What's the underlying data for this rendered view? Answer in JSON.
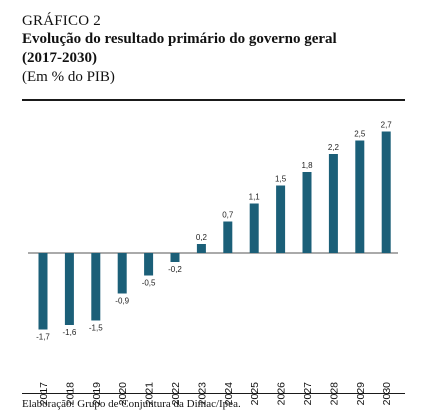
{
  "figure": {
    "label": "GRÁFICO 2",
    "title_line1": "Evolução do resultado primário do governo geral",
    "title_line2": "(2017-2030)",
    "subtitle": "(Em % do PIB)",
    "source": "Elaboração: Grupo de Conjuntura da Dimac/Ipea."
  },
  "colors": {
    "bar": "#1b5f78",
    "baseline": "#555555",
    "rule": "#1a1a1a"
  },
  "chart_data": {
    "type": "bar",
    "categories": [
      "2017",
      "2018",
      "2019",
      "2020",
      "2021",
      "2022",
      "2023",
      "2024",
      "2025",
      "2026",
      "2027",
      "2028",
      "2029",
      "2030"
    ],
    "values": [
      -1.7,
      -1.6,
      -1.5,
      -0.9,
      -0.5,
      -0.2,
      0.2,
      0.7,
      1.1,
      1.5,
      1.8,
      2.2,
      2.5,
      2.7
    ],
    "value_labels": [
      "-1,7",
      "-1,6",
      "-1,5",
      "-0,9",
      "-0,5",
      "-0,2",
      "0,2",
      "0,7",
      "1,1",
      "1,5",
      "1,8",
      "2,2",
      "2,5",
      "2,7"
    ],
    "xlabel": "",
    "ylabel": "",
    "ylim": [
      -1.9,
      2.9
    ],
    "grid": false,
    "legend": "none"
  }
}
